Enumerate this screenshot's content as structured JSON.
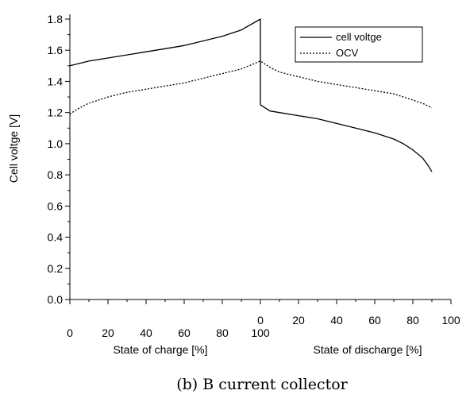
{
  "chart_data": {
    "type": "line",
    "ylabel": "Cell voltge [V]",
    "ylim": [
      0.0,
      1.8
    ],
    "y_ticks": [
      "0.0",
      "0.2",
      "0.4",
      "0.6",
      "0.8",
      "1.0",
      "1.2",
      "1.4",
      "1.6",
      "1.8"
    ],
    "x_ticks_charge": [
      "0",
      "20",
      "40",
      "60",
      "80",
      "100"
    ],
    "x_ticks_discharge": [
      "0",
      "20",
      "40",
      "60",
      "80",
      "100"
    ],
    "xlabel_charge": "State of charge [%]",
    "xlabel_discharge": "State of discharge [%]",
    "caption": "(b) B current collector",
    "legend_position": "top-right",
    "series": [
      {
        "name": "cell voltge",
        "style": "solid",
        "charge": {
          "x": [
            0,
            10,
            20,
            30,
            40,
            50,
            60,
            70,
            80,
            90,
            100
          ],
          "y": [
            1.5,
            1.53,
            1.55,
            1.57,
            1.59,
            1.61,
            1.63,
            1.66,
            1.69,
            1.73,
            1.8
          ]
        },
        "discharge": {
          "x": [
            0,
            0,
            5,
            10,
            20,
            30,
            40,
            50,
            60,
            70,
            75,
            80,
            85,
            88,
            90
          ],
          "y": [
            1.8,
            1.25,
            1.21,
            1.2,
            1.18,
            1.16,
            1.13,
            1.1,
            1.07,
            1.03,
            1.0,
            0.96,
            0.91,
            0.86,
            0.82
          ]
        }
      },
      {
        "name": "OCV",
        "style": "dotted",
        "charge": {
          "x": [
            0,
            5,
            10,
            20,
            30,
            40,
            50,
            60,
            70,
            80,
            90,
            100
          ],
          "y": [
            1.19,
            1.23,
            1.26,
            1.3,
            1.33,
            1.35,
            1.37,
            1.39,
            1.42,
            1.45,
            1.48,
            1.53
          ]
        },
        "discharge": {
          "x": [
            0,
            5,
            10,
            20,
            30,
            40,
            50,
            60,
            70,
            80,
            85,
            90
          ],
          "y": [
            1.53,
            1.49,
            1.46,
            1.43,
            1.4,
            1.38,
            1.36,
            1.34,
            1.32,
            1.28,
            1.26,
            1.23
          ]
        }
      }
    ]
  }
}
